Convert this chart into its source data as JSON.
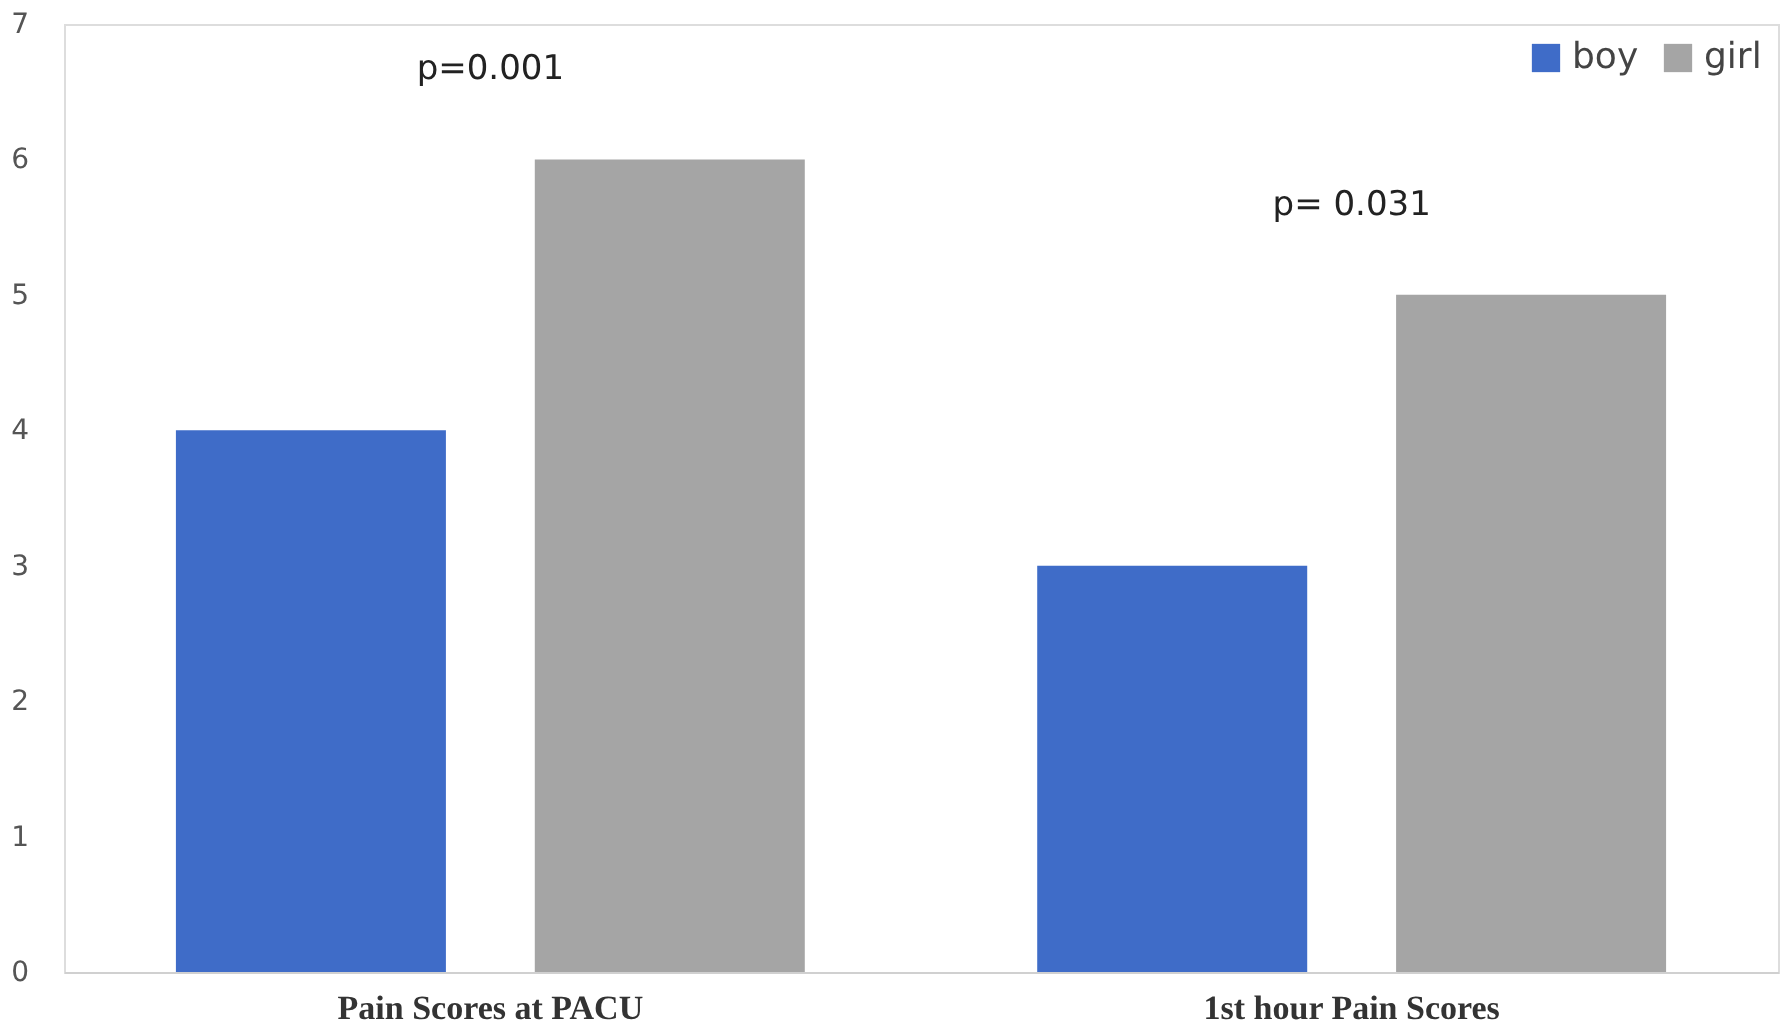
{
  "chart_data": {
    "type": "bar",
    "categories": [
      "Pain Scores at PACU",
      "1st hour Pain Scores"
    ],
    "series": [
      {
        "name": "boy",
        "color": "#3f6cc8",
        "values": [
          4,
          3
        ]
      },
      {
        "name": "girl",
        "color": "#a5a5a5",
        "values": [
          6,
          5
        ]
      }
    ],
    "ylim": [
      0,
      7
    ],
    "yticks": [
      0,
      1,
      2,
      3,
      4,
      5,
      6,
      7
    ],
    "grid": false,
    "legend": "top right",
    "annotations": [
      "p=0.001",
      "p= 0.031"
    ]
  }
}
